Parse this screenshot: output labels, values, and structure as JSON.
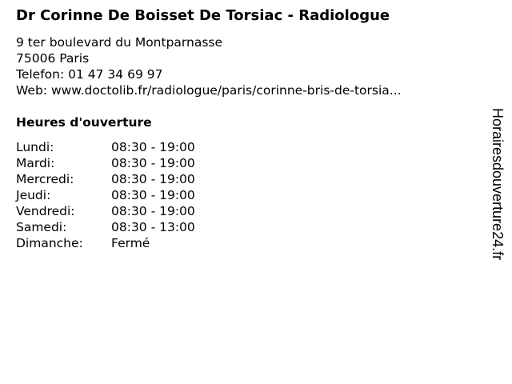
{
  "title": "Dr Corinne De Boisset De Torsiac - Radiologue",
  "address_line1": "9 ter boulevard du Montparnasse",
  "address_line2": "75006 Paris",
  "phone": "Telefon: 01 47 34 69 97",
  "web": "Web: www.doctolib.fr/radiologue/paris/corinne-bris-de-torsia...",
  "hours_heading": "Heures d'ouverture",
  "hours": [
    {
      "day": "Lundi:",
      "time": "08:30 - 19:00"
    },
    {
      "day": "Mardi:",
      "time": "08:30 - 19:00"
    },
    {
      "day": "Mercredi:",
      "time": "08:30 - 19:00"
    },
    {
      "day": "Jeudi:",
      "time": "08:30 - 19:00"
    },
    {
      "day": "Vendredi:",
      "time": "08:30 - 19:00"
    },
    {
      "day": "Samedi:",
      "time": "08:30 - 13:00"
    },
    {
      "day": "Dimanche:",
      "time": "Fermé"
    }
  ],
  "watermark": "Horairesdouverture24.fr"
}
